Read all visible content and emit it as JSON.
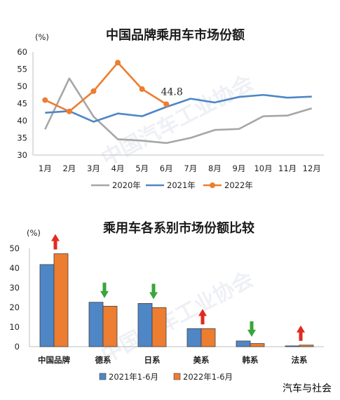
{
  "source": "汽车与社会",
  "watermark": "中国汽车工业协会",
  "chart_data": [
    {
      "type": "line",
      "title": "中国品牌乘用车市场份额",
      "unit_label": "(%)",
      "categories": [
        "1月",
        "2月",
        "3月",
        "4月",
        "5月",
        "6月",
        "7月",
        "8月",
        "9月",
        "10月",
        "11月",
        "12月"
      ],
      "ylim": [
        30,
        60
      ],
      "yticks": [
        30,
        35,
        40,
        45,
        50,
        55,
        60
      ],
      "series": [
        {
          "name": "2020年",
          "color": "#a6a6a6",
          "marker": false,
          "values": [
            37.5,
            52.3,
            41.2,
            34.6,
            34.2,
            33.5,
            35.0,
            37.3,
            37.6,
            41.3,
            41.5,
            43.6
          ]
        },
        {
          "name": "2021年",
          "color": "#4f86c6",
          "marker": false,
          "values": [
            42.3,
            42.8,
            39.7,
            42.1,
            41.3,
            44.0,
            46.4,
            45.3,
            46.9,
            47.5,
            46.7,
            47.0
          ]
        },
        {
          "name": "2022年",
          "color": "#ed7d31",
          "marker": true,
          "values": [
            46.0,
            42.7,
            48.6,
            56.9,
            49.2,
            44.8,
            null,
            null,
            null,
            null,
            null,
            null
          ]
        }
      ],
      "annotation": {
        "label": "44.8",
        "series": "2022年",
        "index": 5
      },
      "legend_position": "bottom",
      "grid": false
    },
    {
      "type": "bar",
      "title": "乘用车各系别市场份额比较",
      "unit_label": "(%)",
      "categories": [
        "中国品牌",
        "德系",
        "日系",
        "美系",
        "韩系",
        "法系"
      ],
      "ylim": [
        0,
        50
      ],
      "yticks": [
        0,
        10,
        20,
        30,
        40,
        50
      ],
      "series": [
        {
          "name": "2021年1-6月",
          "color": "#4f86c6",
          "values": [
            41.8,
            22.6,
            22.0,
            9.2,
            2.9,
            0.4
          ]
        },
        {
          "name": "2022年1-6月",
          "color": "#ed7d31",
          "values": [
            47.3,
            20.6,
            19.9,
            9.2,
            1.6,
            0.8
          ]
        }
      ],
      "trend_arrows": [
        "up",
        "down",
        "down",
        "up",
        "down",
        "up"
      ],
      "arrow_colors": {
        "up": "#e02b20",
        "down": "#3aa53a"
      },
      "legend_position": "bottom",
      "grid": false
    }
  ]
}
